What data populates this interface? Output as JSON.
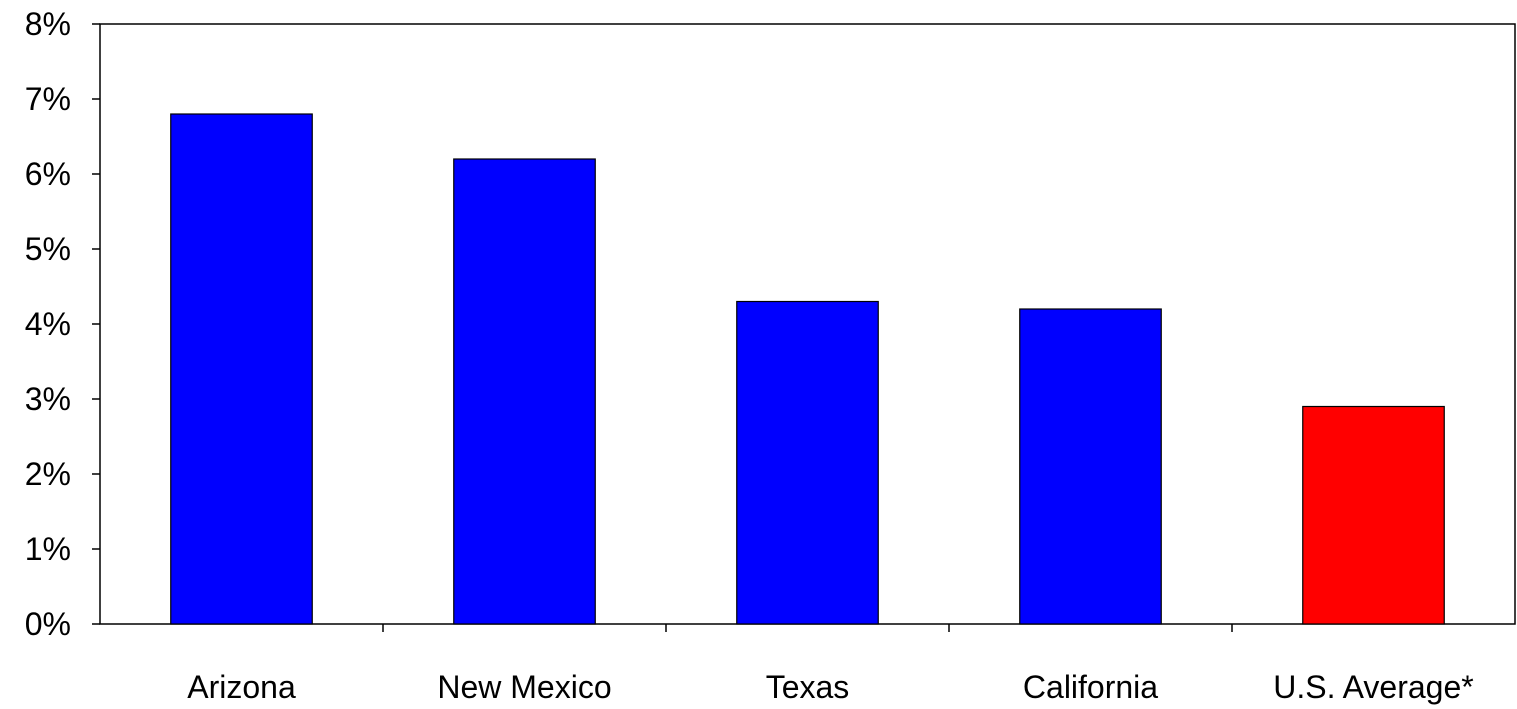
{
  "chart_data": {
    "type": "bar",
    "title": "",
    "xlabel": "",
    "ylabel": "",
    "categories": [
      "Arizona",
      "New Mexico",
      "Texas",
      "California",
      "U.S. Average*"
    ],
    "values": [
      6.8,
      6.2,
      4.3,
      4.2,
      2.9
    ],
    "bar_colors": [
      "#0000FF",
      "#0000FF",
      "#0000FF",
      "#0000FF",
      "#FF0000"
    ],
    "ylim": [
      0,
      8
    ],
    "y_ticks": [
      0,
      1,
      2,
      3,
      4,
      5,
      6,
      7,
      8
    ],
    "y_tick_labels": [
      "0%",
      "1%",
      "2%",
      "3%",
      "4%",
      "5%",
      "6%",
      "7%",
      "8%"
    ],
    "y_unit": "%",
    "grid": false,
    "legend": "none"
  }
}
